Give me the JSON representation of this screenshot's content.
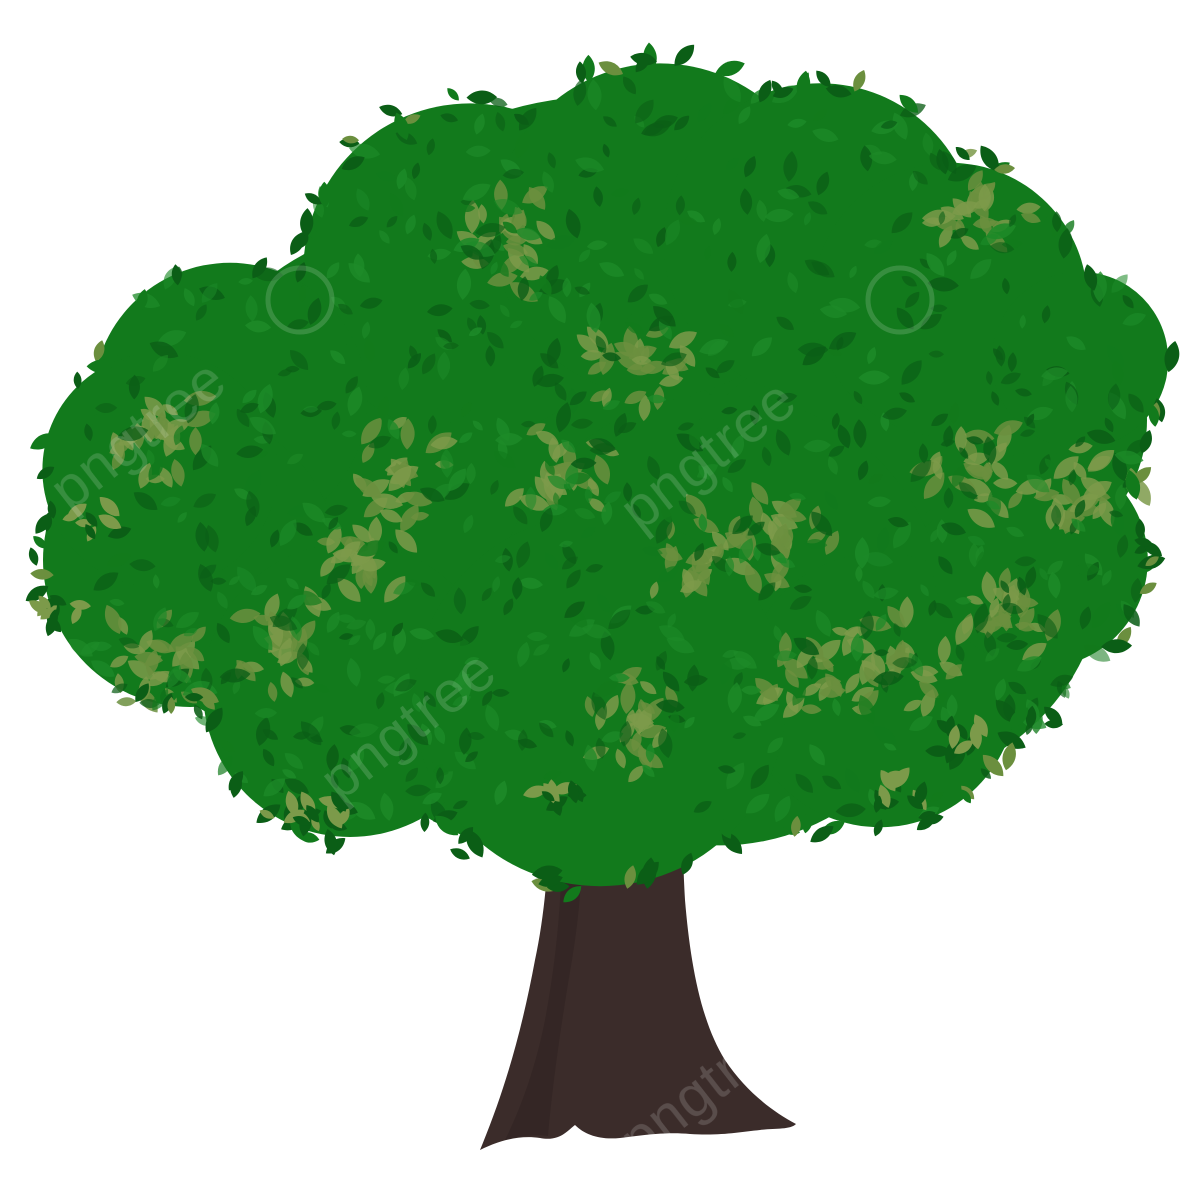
{
  "scene": {
    "subject": "tree",
    "background_color": "#ffffff"
  },
  "colors": {
    "foliage_dark": "#0b5e16",
    "foliage_main": "#127a1c",
    "foliage_mid": "#1d8a28",
    "foliage_light": "#6b8f3e",
    "foliage_olive": "#7c9a4a",
    "trunk": "#3b2c2a",
    "trunk_shadow": "#2f2220"
  },
  "watermark": {
    "text": "pngtree",
    "color": "#ffffff"
  }
}
